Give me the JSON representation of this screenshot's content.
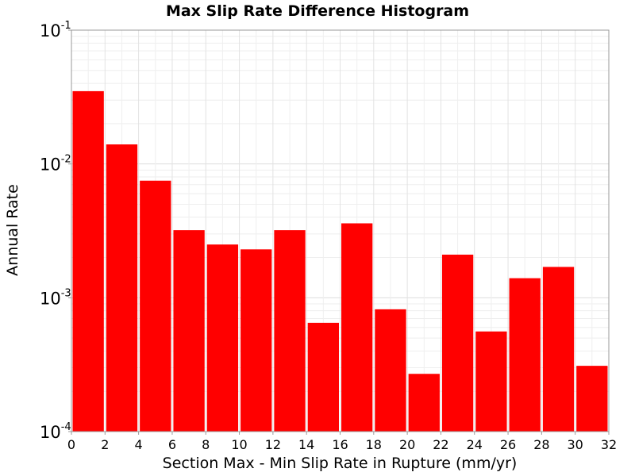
{
  "chart_data": {
    "type": "bar",
    "title": "Max Slip Rate Difference Histogram",
    "xlabel": "Section Max - Min Slip Rate in Rupture (mm/yr)",
    "ylabel": "Annual Rate",
    "yscale": "log",
    "xlim": [
      0,
      32
    ],
    "ylim": [
      0.0001,
      0.1
    ],
    "bin_width": 2,
    "x_ticks": [
      "0",
      "2",
      "4",
      "6",
      "8",
      "10",
      "12",
      "14",
      "16",
      "18",
      "20",
      "22",
      "24",
      "26",
      "28",
      "30",
      "32"
    ],
    "y_ticks": [
      {
        "base": "10",
        "exp": "-1"
      },
      {
        "base": "10",
        "exp": "-2"
      },
      {
        "base": "10",
        "exp": "-3"
      },
      {
        "base": "10",
        "exp": "-4"
      }
    ],
    "bar_color": "#ff0000",
    "grid": true,
    "bars": [
      {
        "x": 1,
        "value": 0.035
      },
      {
        "x": 3,
        "value": 0.014
      },
      {
        "x": 5,
        "value": 0.0075
      },
      {
        "x": 7,
        "value": 0.0032
      },
      {
        "x": 9,
        "value": 0.0025
      },
      {
        "x": 11,
        "value": 0.0023
      },
      {
        "x": 13,
        "value": 0.0032
      },
      {
        "x": 15,
        "value": 0.00065
      },
      {
        "x": 17,
        "value": 0.0036
      },
      {
        "x": 19,
        "value": 0.00082
      },
      {
        "x": 21,
        "value": 0.00027
      },
      {
        "x": 23,
        "value": 0.0021
      },
      {
        "x": 25,
        "value": 0.00056
      },
      {
        "x": 27,
        "value": 0.0014
      },
      {
        "x": 29,
        "value": 0.0017
      },
      {
        "x": 31,
        "value": 0.00031
      }
    ]
  }
}
